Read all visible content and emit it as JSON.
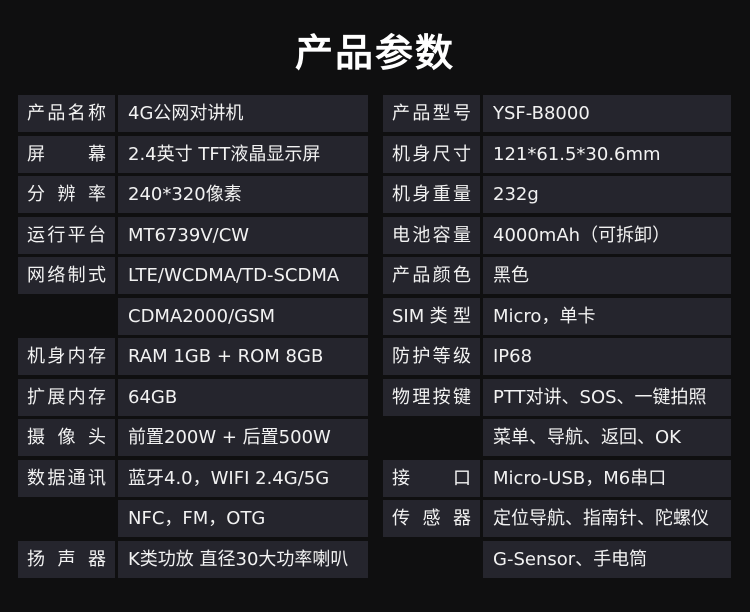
{
  "title": "产品参数",
  "colors": {
    "background": "#0f0f10",
    "cell": "#25252d",
    "text": "#f2f2f2"
  },
  "left": [
    {
      "label": "产品名称",
      "value": "4G公网对讲机"
    },
    {
      "label": "屏幕",
      "value": "2.4英寸 TFT液晶显示屏"
    },
    {
      "label": "分辨率",
      "value": "240*320像素"
    },
    {
      "label": "运行平台",
      "value": "MT6739V/CW"
    },
    {
      "label": "网络制式",
      "value": "LTE/WCDMA/TD-SCDMA"
    },
    {
      "label": "",
      "value": "CDMA2000/GSM"
    },
    {
      "label": "机身内存",
      "value": "RAM 1GB + ROM 8GB"
    },
    {
      "label": "扩展内存",
      "value": "64GB"
    },
    {
      "label": "摄像头",
      "value": "前置200W + 后置500W"
    },
    {
      "label": "数据通讯",
      "value": "蓝牙4.0，WIFI 2.4G/5G"
    },
    {
      "label": "",
      "value": "NFC，FM，OTG"
    },
    {
      "label": "扬声器",
      "value": "K类功放 直径30大功率喇叭"
    }
  ],
  "right": [
    {
      "label": "产品型号",
      "value": "YSF-B8000"
    },
    {
      "label": "机身尺寸",
      "value": "121*61.5*30.6mm"
    },
    {
      "label": "机身重量",
      "value": "232g"
    },
    {
      "label": "电池容量",
      "value": "4000mAh（可拆卸）"
    },
    {
      "label": "产品颜色",
      "value": "黑色"
    },
    {
      "label": "SIM类型",
      "value": "Micro，单卡"
    },
    {
      "label": "防护等级",
      "value": "IP68"
    },
    {
      "label": "物理按键",
      "value": "PTT对讲、SOS、一键拍照"
    },
    {
      "label": "",
      "value": "菜单、导航、返回、OK"
    },
    {
      "label": "接口",
      "value": "Micro-USB，M6串口"
    },
    {
      "label": "传感器",
      "value": "定位导航、指南针、陀螺仪"
    },
    {
      "label": "",
      "value": "G-Sensor、手电筒"
    }
  ]
}
